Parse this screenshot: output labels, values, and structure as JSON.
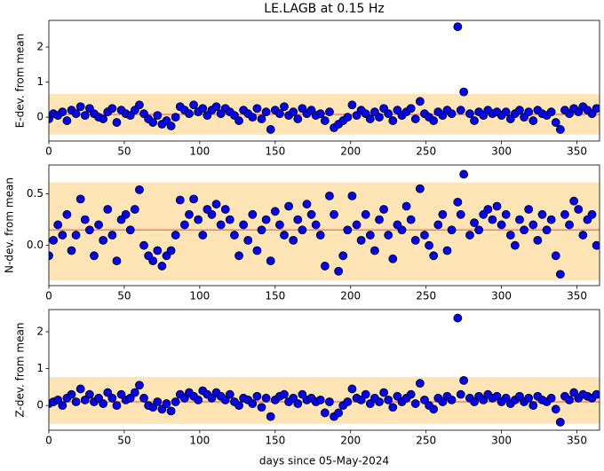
{
  "chart_data": [
    {
      "type": "scatter",
      "title": "LE.LAGB at 0.15 Hz",
      "ylabel": "E-dev. from mean",
      "x": [
        0,
        3,
        6,
        9,
        12,
        15,
        18,
        21,
        24,
        27,
        30,
        33,
        36,
        39,
        42,
        45,
        48,
        51,
        54,
        57,
        60,
        63,
        66,
        69,
        72,
        75,
        78,
        81,
        84,
        87,
        90,
        93,
        96,
        99,
        102,
        105,
        108,
        111,
        114,
        117,
        120,
        123,
        126,
        129,
        132,
        135,
        138,
        141,
        144,
        147,
        150,
        153,
        156,
        159,
        162,
        165,
        168,
        171,
        174,
        177,
        180,
        183,
        186,
        189,
        192,
        195,
        198,
        201,
        204,
        207,
        210,
        213,
        216,
        219,
        222,
        225,
        228,
        231,
        234,
        237,
        240,
        243,
        246,
        249,
        252,
        255,
        258,
        261,
        264,
        267,
        271,
        273,
        275,
        279,
        282,
        285,
        288,
        291,
        294,
        297,
        300,
        303,
        306,
        309,
        312,
        315,
        318,
        321,
        324,
        327,
        330,
        333,
        336,
        339,
        342,
        345,
        348,
        351,
        354,
        357,
        360,
        363
      ],
      "values": [
        -0.05,
        0.1,
        0.05,
        0.15,
        -0.1,
        0.2,
        0.1,
        0.3,
        0.05,
        0.25,
        0.1,
        0.0,
        -0.05,
        0.15,
        0.25,
        -0.15,
        0.2,
        0.1,
        0.05,
        0.2,
        0.35,
        0.1,
        -0.05,
        -0.15,
        0.05,
        -0.2,
        -0.1,
        -0.25,
        0.0,
        0.3,
        0.2,
        0.1,
        0.35,
        0.15,
        0.25,
        0.05,
        0.2,
        0.3,
        0.1,
        0.25,
        0.15,
        0.05,
        -0.1,
        0.2,
        0.1,
        0.0,
        0.25,
        -0.05,
        0.15,
        -0.35,
        0.2,
        0.1,
        0.3,
        0.05,
        0.15,
        -0.05,
        0.25,
        0.1,
        0.2,
        0.05,
        0.1,
        -0.1,
        0.15,
        -0.3,
        -0.2,
        -0.1,
        0.0,
        0.35,
        0.05,
        0.2,
        0.1,
        -0.05,
        0.15,
        0.0,
        0.25,
        0.1,
        -0.1,
        0.2,
        0.05,
        0.15,
        0.25,
        -0.05,
        0.45,
        0.1,
        0.0,
        -0.1,
        0.15,
        0.05,
        0.2,
        0.1,
        2.58,
        0.2,
        0.72,
        0.1,
        -0.1,
        0.15,
        0.05,
        0.2,
        0.1,
        0.15,
        0.05,
        0.15,
        -0.05,
        0.1,
        0.2,
        0.0,
        0.15,
        -0.1,
        0.2,
        0.1,
        0.05,
        0.15,
        -0.15,
        -0.35,
        0.2,
        0.1,
        0.25,
        0.15,
        0.3,
        0.2,
        0.1,
        0.25
      ],
      "color": "#0000ff",
      "band": [
        -0.5,
        0.66
      ],
      "band_color": "#ffe4b5",
      "line_value": 0.08,
      "line_color": "#f08070",
      "xlim": [
        0,
        365
      ],
      "xticks": [
        0,
        50,
        100,
        150,
        200,
        250,
        300,
        350
      ],
      "ylim": [
        -0.68,
        2.76
      ],
      "yticks": [
        0,
        1,
        2
      ]
    },
    {
      "type": "scatter",
      "ylabel": "N-dev. from mean",
      "x": [
        0,
        3,
        6,
        9,
        12,
        15,
        18,
        21,
        24,
        27,
        30,
        33,
        36,
        39,
        42,
        45,
        48,
        51,
        54,
        57,
        60,
        63,
        66,
        69,
        72,
        75,
        78,
        81,
        84,
        87,
        90,
        93,
        96,
        99,
        102,
        105,
        108,
        111,
        114,
        117,
        120,
        123,
        126,
        129,
        132,
        135,
        138,
        141,
        144,
        147,
        150,
        153,
        156,
        159,
        162,
        165,
        168,
        171,
        174,
        177,
        180,
        183,
        186,
        189,
        192,
        195,
        198,
        201,
        204,
        207,
        210,
        213,
        216,
        219,
        222,
        225,
        228,
        231,
        234,
        237,
        240,
        243,
        246,
        249,
        252,
        255,
        258,
        261,
        264,
        267,
        271,
        273,
        275,
        279,
        282,
        285,
        288,
        291,
        294,
        297,
        300,
        303,
        306,
        309,
        312,
        315,
        318,
        321,
        324,
        327,
        330,
        333,
        336,
        339,
        342,
        345,
        348,
        351,
        354,
        357,
        360,
        363
      ],
      "values": [
        -0.1,
        0.05,
        0.2,
        0.1,
        0.3,
        -0.05,
        0.1,
        0.45,
        0.25,
        0.15,
        -0.1,
        0.2,
        0.05,
        0.35,
        0.1,
        -0.15,
        0.25,
        0.3,
        0.15,
        0.35,
        0.54,
        0.0,
        -0.1,
        -0.15,
        -0.05,
        -0.2,
        -0.1,
        -0.05,
        0.1,
        0.44,
        0.2,
        0.3,
        0.45,
        0.25,
        0.1,
        0.35,
        0.3,
        0.4,
        0.2,
        0.35,
        0.25,
        0.1,
        -0.1,
        0.2,
        0.05,
        0.3,
        -0.05,
        0.15,
        0.25,
        -0.15,
        0.33,
        0.2,
        0.1,
        0.38,
        0.05,
        0.25,
        0.15,
        0.4,
        0.3,
        0.2,
        0.1,
        -0.2,
        0.48,
        0.3,
        -0.25,
        -0.1,
        0.15,
        0.48,
        0.2,
        0.05,
        0.3,
        0.1,
        -0.05,
        0.25,
        0.35,
        0.1,
        -0.13,
        0.2,
        0.15,
        0.38,
        0.25,
        0.05,
        0.55,
        0.1,
        0.0,
        -0.1,
        0.2,
        0.3,
        -0.05,
        0.15,
        0.42,
        0.3,
        0.69,
        0.1,
        0.22,
        0.15,
        0.3,
        0.35,
        0.25,
        0.38,
        0.2,
        0.3,
        0.1,
        0.0,
        0.25,
        0.15,
        0.35,
        0.2,
        0.05,
        0.3,
        0.15,
        0.25,
        -0.1,
        -0.28,
        0.3,
        0.2,
        0.43,
        0.35,
        0.1,
        0.25,
        0.3,
        0.0
      ],
      "color": "#0000ff",
      "band": [
        -0.34,
        0.61
      ],
      "band_color": "#ffe4b5",
      "line_value": 0.15,
      "line_color": "#f08070",
      "xlim": [
        0,
        365
      ],
      "xticks": [
        0,
        50,
        100,
        150,
        200,
        250,
        300,
        350
      ],
      "ylim": [
        -0.39,
        0.78
      ],
      "yticks": [
        {
          "value": 0,
          "label": "0.0"
        },
        0.5
      ]
    },
    {
      "type": "scatter",
      "ylabel": "Z-dev. from mean",
      "xlabel": "days since 05-May-2024",
      "x": [
        0,
        3,
        6,
        9,
        12,
        15,
        18,
        21,
        24,
        27,
        30,
        33,
        36,
        39,
        42,
        45,
        48,
        51,
        54,
        57,
        60,
        63,
        66,
        69,
        72,
        75,
        78,
        81,
        84,
        87,
        90,
        93,
        96,
        99,
        102,
        105,
        108,
        111,
        114,
        117,
        120,
        123,
        126,
        129,
        132,
        135,
        138,
        141,
        144,
        147,
        150,
        153,
        156,
        159,
        162,
        165,
        168,
        171,
        174,
        177,
        180,
        183,
        186,
        189,
        192,
        195,
        198,
        201,
        204,
        207,
        210,
        213,
        216,
        219,
        222,
        225,
        228,
        231,
        234,
        237,
        240,
        243,
        246,
        249,
        252,
        255,
        258,
        261,
        264,
        267,
        271,
        273,
        275,
        279,
        282,
        285,
        288,
        291,
        294,
        297,
        300,
        303,
        306,
        309,
        312,
        315,
        318,
        321,
        324,
        327,
        330,
        333,
        336,
        339,
        342,
        345,
        348,
        351,
        354,
        357,
        360,
        363
      ],
      "values": [
        0.05,
        0.1,
        0.15,
        0.0,
        0.2,
        0.3,
        0.1,
        0.45,
        0.15,
        0.3,
        0.1,
        0.2,
        0.05,
        0.35,
        0.2,
        0.0,
        0.3,
        0.15,
        0.2,
        0.35,
        0.55,
        0.2,
        0.0,
        -0.05,
        0.1,
        -0.1,
        0.05,
        -0.15,
        0.1,
        0.3,
        0.2,
        0.35,
        0.25,
        0.15,
        0.4,
        0.3,
        0.2,
        0.35,
        0.25,
        0.15,
        0.3,
        0.1,
        0.0,
        0.2,
        0.15,
        0.05,
        0.25,
        -0.05,
        0.2,
        -0.3,
        0.15,
        0.25,
        0.3,
        0.1,
        0.2,
        0.05,
        0.3,
        0.15,
        0.2,
        0.1,
        0.15,
        -0.2,
        0.1,
        -0.3,
        -0.2,
        0.0,
        0.1,
        0.45,
        0.2,
        0.15,
        0.3,
        0.05,
        0.2,
        0.1,
        0.35,
        0.15,
        -0.05,
        0.25,
        0.1,
        0.2,
        0.3,
        0.05,
        0.6,
        0.15,
        0.0,
        -0.1,
        0.2,
        0.1,
        0.25,
        0.15,
        2.37,
        0.3,
        0.68,
        0.2,
        0.1,
        0.25,
        0.15,
        0.3,
        0.2,
        0.25,
        0.1,
        0.2,
        0.05,
        0.15,
        0.25,
        0.1,
        0.2,
        0.0,
        0.25,
        0.15,
        0.1,
        0.2,
        -0.1,
        -0.45,
        0.25,
        0.15,
        0.35,
        0.2,
        0.3,
        0.25,
        0.2,
        0.3
      ],
      "color": "#0000ff",
      "band": [
        -0.5,
        0.77
      ],
      "band_color": "#ffe4b5",
      "line_value": 0.1,
      "line_color": "#f08070",
      "xlim": [
        0,
        365
      ],
      "xticks": [
        0,
        50,
        100,
        150,
        200,
        250,
        300,
        350
      ],
      "ylim": [
        -0.67,
        2.6
      ],
      "yticks": [
        0,
        1,
        2
      ]
    }
  ]
}
